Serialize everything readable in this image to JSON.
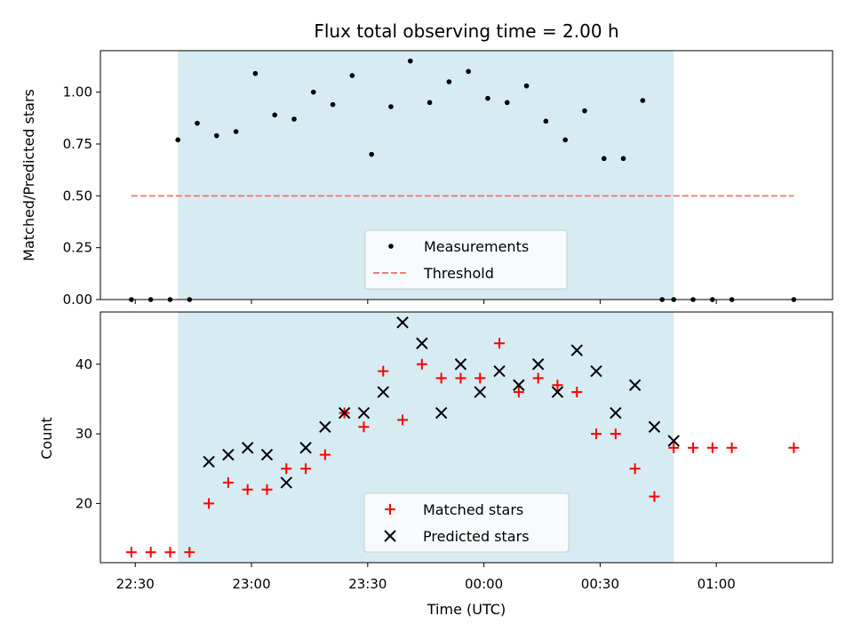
{
  "chart_data": [
    {
      "type": "scatter",
      "title": "Flux total observing time = 2.00 h",
      "xlabel": "",
      "ylabel": "Matched/Predicted stars",
      "xlim": [
        "22:21",
        "01:30"
      ],
      "ylim": [
        0,
        1.2
      ],
      "yticks": [
        0.0,
        0.25,
        0.5,
        0.75,
        1.0
      ],
      "ytick_labels": [
        "0.00",
        "0.25",
        "0.50",
        "0.75",
        "1.00"
      ],
      "xticks": [
        "22:30",
        "23:00",
        "23:30",
        "00:00",
        "00:30",
        "01:00"
      ],
      "shaded_region": {
        "start": "22:41",
        "end": "00:49",
        "color": "#add8e6"
      },
      "legend_position": "lower center",
      "series": [
        {
          "name": "Measurements",
          "marker": "dot",
          "color": "#000000",
          "x": [
            "22:29",
            "22:34",
            "22:39",
            "22:44",
            "22:41",
            "22:46",
            "22:51",
            "22:56",
            "23:01",
            "23:06",
            "23:11",
            "23:16",
            "23:21",
            "23:26",
            "23:31",
            "23:36",
            "23:41",
            "23:46",
            "23:51",
            "23:56",
            "00:01",
            "00:06",
            "00:11",
            "00:16",
            "00:21",
            "00:26",
            "00:31",
            "00:36",
            "00:41",
            "00:46",
            "00:49",
            "00:54",
            "00:59",
            "01:04",
            "01:20"
          ],
          "y": [
            0,
            0,
            0,
            0,
            0.77,
            0.85,
            0.79,
            0.81,
            1.09,
            0.89,
            0.87,
            1.0,
            0.94,
            1.08,
            0.7,
            0.93,
            1.15,
            0.95,
            1.05,
            1.1,
            0.97,
            0.95,
            1.03,
            0.86,
            0.77,
            0.91,
            0.68,
            0.68,
            0.96,
            0,
            0,
            0,
            0,
            0,
            0
          ]
        },
        {
          "name": "Threshold",
          "style": "dashed",
          "color": "#f08080",
          "x": [
            "22:29",
            "01:20"
          ],
          "y": [
            0.5,
            0.5
          ]
        }
      ]
    },
    {
      "type": "scatter",
      "title": "",
      "xlabel": "Time (UTC)",
      "ylabel": "Count",
      "xlim": [
        "22:21",
        "01:30"
      ],
      "ylim": [
        11.5,
        47.5
      ],
      "yticks": [
        20,
        30,
        40
      ],
      "ytick_labels": [
        "20",
        "30",
        "40"
      ],
      "xticks": [
        "22:30",
        "23:00",
        "23:30",
        "00:00",
        "00:30",
        "01:00"
      ],
      "xtick_labels": [
        "22:30",
        "23:00",
        "23:30",
        "00:00",
        "00:30",
        "01:00"
      ],
      "shaded_region": {
        "start": "22:41",
        "end": "00:49",
        "color": "#add8e6"
      },
      "legend_position": "lower center",
      "series": [
        {
          "name": "Matched stars",
          "marker": "plus",
          "color": "#ff0000",
          "x": [
            "22:29",
            "22:34",
            "22:39",
            "22:44",
            "22:49",
            "22:54",
            "22:59",
            "23:04",
            "23:09",
            "23:14",
            "23:19",
            "23:24",
            "23:29",
            "23:34",
            "23:39",
            "23:44",
            "23:49",
            "23:54",
            "23:59",
            "00:04",
            "00:09",
            "00:14",
            "00:19",
            "00:24",
            "00:29",
            "00:34",
            "00:39",
            "00:44",
            "00:49",
            "00:54",
            "00:59",
            "01:04",
            "01:20"
          ],
          "y": [
            13,
            13,
            13,
            13,
            20,
            23,
            22,
            22,
            25,
            25,
            27,
            33,
            31,
            39,
            32,
            40,
            38,
            38,
            38,
            43,
            36,
            38,
            37,
            36,
            30,
            30,
            25,
            21,
            28,
            28,
            28,
            28,
            28
          ]
        },
        {
          "name": "Predicted stars",
          "marker": "x",
          "color": "#000000",
          "x": [
            "22:49",
            "22:54",
            "22:59",
            "23:04",
            "23:09",
            "23:14",
            "23:19",
            "23:24",
            "23:29",
            "23:34",
            "23:39",
            "23:44",
            "23:49",
            "23:54",
            "23:59",
            "00:04",
            "00:09",
            "00:14",
            "00:19",
            "00:24",
            "00:29",
            "00:34",
            "00:39",
            "00:44",
            "00:49"
          ],
          "y": [
            26,
            27,
            28,
            27,
            23,
            28,
            31,
            33,
            33,
            36,
            46,
            43,
            33,
            40,
            36,
            39,
            37,
            40,
            36,
            42,
            39,
            33,
            37,
            31,
            29
          ]
        }
      ]
    }
  ]
}
